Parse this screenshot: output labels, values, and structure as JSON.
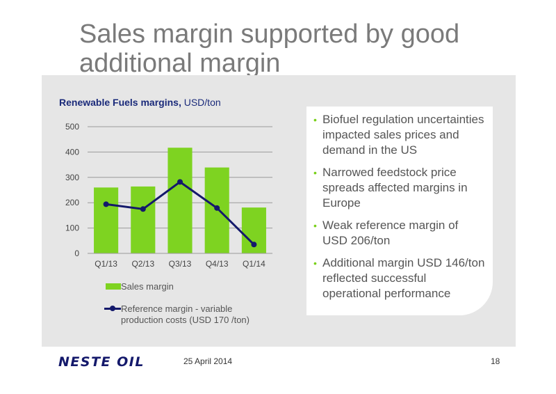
{
  "slide": {
    "title": "Sales margin supported by good\nadditional margin",
    "date": "25 April 2014",
    "page_number": "18",
    "logo_text": "NESTE OIL"
  },
  "chart_header": {
    "bold": "Renewable Fuels margins,",
    "normal": " USD/ton"
  },
  "bullets": [
    "Biofuel regulation uncertainties impacted sales prices and demand in the US",
    "Narrowed feedstock price spreads affected margins in Europe",
    "Weak reference margin of USD 206/ton",
    "Additional margin USD 146/ton reflected successful operational performance"
  ],
  "legend": {
    "sales": "Sales margin",
    "reference": "Reference margin - variable production costs (USD 170 /ton)"
  },
  "colors": {
    "bar": "#7ed321",
    "line": "#14196b",
    "bullet_dot": "#78d018",
    "title": "#7a7a7a",
    "panel": "#e6e6e6"
  },
  "chart_data": {
    "type": "bar",
    "categories": [
      "Q1/13",
      "Q2/13",
      "Q3/13",
      "Q4/13",
      "Q1/14"
    ],
    "series": [
      {
        "name": "Sales margin",
        "type": "bar",
        "values": [
          260,
          264,
          417,
          339,
          181
        ]
      },
      {
        "name": "Reference margin - variable production costs (USD 170 /ton)",
        "type": "line",
        "values": [
          194,
          175,
          282,
          179,
          35
        ]
      }
    ],
    "yticks": [
      0,
      100,
      200,
      300,
      400,
      500
    ],
    "ylim": [
      0,
      500
    ],
    "grid": true,
    "legend_position": "bottom"
  }
}
